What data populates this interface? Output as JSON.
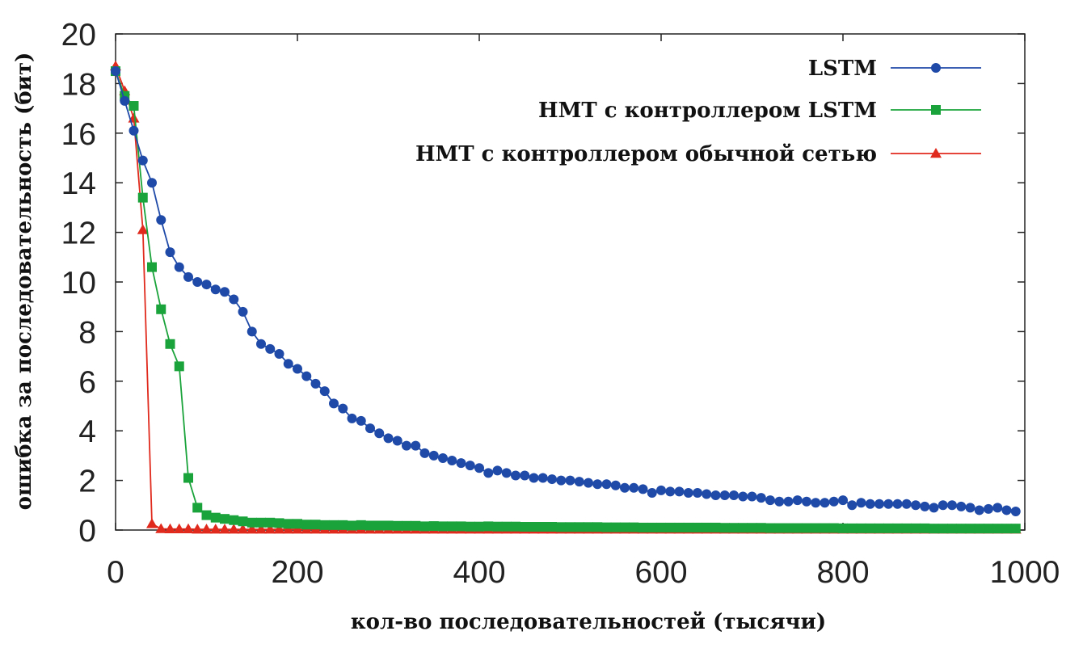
{
  "chart_data": {
    "type": "line",
    "title": "",
    "xlabel": "кол-во последовательностей (тысячи)",
    "ylabel": "ошибка за последовательность (бит)",
    "xlim": [
      0,
      1000
    ],
    "ylim": [
      0,
      20
    ],
    "xticks": [
      "0",
      "200",
      "400",
      "600",
      "800",
      "1000"
    ],
    "yticks": [
      "0",
      "2",
      "4",
      "6",
      "8",
      "10",
      "12",
      "14",
      "16",
      "18",
      "20"
    ],
    "grid": false,
    "legend_position": "top-right",
    "series": [
      {
        "name": "LSTM",
        "color": "#1f4aa8",
        "marker": "circle",
        "x": [
          0,
          10,
          20,
          30,
          40,
          50,
          60,
          70,
          80,
          90,
          100,
          110,
          120,
          130,
          140,
          150,
          160,
          170,
          180,
          190,
          200,
          210,
          220,
          230,
          240,
          250,
          260,
          270,
          280,
          290,
          300,
          310,
          320,
          330,
          340,
          350,
          360,
          370,
          380,
          390,
          400,
          410,
          420,
          430,
          440,
          450,
          460,
          470,
          480,
          490,
          500,
          510,
          520,
          530,
          540,
          550,
          560,
          570,
          580,
          590,
          600,
          610,
          620,
          630,
          640,
          650,
          660,
          670,
          680,
          690,
          700,
          710,
          720,
          730,
          740,
          750,
          760,
          770,
          780,
          790,
          800,
          810,
          820,
          830,
          840,
          850,
          860,
          870,
          880,
          890,
          900,
          910,
          920,
          930,
          940,
          950,
          960,
          970,
          980,
          990
        ],
        "y": [
          18.5,
          17.3,
          16.1,
          14.9,
          14.0,
          12.5,
          11.2,
          10.6,
          10.2,
          10.0,
          9.9,
          9.7,
          9.6,
          9.3,
          8.8,
          8.0,
          7.5,
          7.3,
          7.1,
          6.7,
          6.5,
          6.2,
          5.9,
          5.6,
          5.1,
          4.9,
          4.5,
          4.4,
          4.1,
          3.9,
          3.7,
          3.6,
          3.4,
          3.4,
          3.1,
          3.0,
          2.9,
          2.8,
          2.7,
          2.6,
          2.5,
          2.3,
          2.4,
          2.3,
          2.2,
          2.2,
          2.1,
          2.1,
          2.05,
          2.0,
          2.0,
          1.95,
          1.9,
          1.85,
          1.85,
          1.8,
          1.7,
          1.7,
          1.65,
          1.5,
          1.6,
          1.55,
          1.55,
          1.5,
          1.5,
          1.45,
          1.4,
          1.4,
          1.4,
          1.35,
          1.35,
          1.3,
          1.2,
          1.15,
          1.15,
          1.2,
          1.15,
          1.1,
          1.1,
          1.15,
          1.2,
          1.0,
          1.1,
          1.05,
          1.05,
          1.05,
          1.05,
          1.05,
          1.0,
          0.95,
          0.9,
          1.0,
          1.0,
          0.95,
          0.9,
          0.8,
          0.85,
          0.9,
          0.8,
          0.75
        ]
      },
      {
        "name": "НМТ с контроллером LSTM",
        "color": "#1aa33a",
        "marker": "square",
        "x": [
          0,
          10,
          20,
          30,
          40,
          50,
          60,
          70,
          80,
          90,
          100,
          110,
          120,
          130,
          140,
          150,
          160,
          170,
          180,
          190,
          200,
          210,
          220,
          230,
          240,
          250,
          260,
          270,
          280,
          290,
          300,
          310,
          320,
          330,
          340,
          350,
          360,
          370,
          380,
          390,
          400,
          410,
          420,
          430,
          440,
          450,
          460,
          470,
          480,
          490,
          500,
          510,
          520,
          530,
          540,
          550,
          560,
          570,
          580,
          590,
          600,
          610,
          620,
          630,
          640,
          650,
          660,
          670,
          680,
          690,
          700,
          710,
          720,
          730,
          740,
          750,
          760,
          770,
          780,
          790,
          800,
          810,
          820,
          830,
          840,
          850,
          860,
          870,
          880,
          890,
          900,
          910,
          920,
          930,
          940,
          950,
          960,
          970,
          980,
          990
        ],
        "y": [
          18.5,
          17.5,
          17.1,
          13.4,
          10.6,
          8.9,
          7.5,
          6.6,
          2.1,
          0.9,
          0.6,
          0.5,
          0.45,
          0.4,
          0.35,
          0.3,
          0.3,
          0.3,
          0.28,
          0.25,
          0.25,
          0.22,
          0.22,
          0.2,
          0.2,
          0.2,
          0.18,
          0.2,
          0.18,
          0.18,
          0.18,
          0.17,
          0.17,
          0.17,
          0.15,
          0.16,
          0.15,
          0.15,
          0.15,
          0.14,
          0.14,
          0.15,
          0.14,
          0.14,
          0.14,
          0.13,
          0.13,
          0.13,
          0.13,
          0.12,
          0.12,
          0.12,
          0.12,
          0.12,
          0.11,
          0.11,
          0.11,
          0.11,
          0.1,
          0.1,
          0.1,
          0.1,
          0.1,
          0.1,
          0.1,
          0.1,
          0.1,
          0.09,
          0.09,
          0.09,
          0.09,
          0.09,
          0.08,
          0.08,
          0.08,
          0.08,
          0.08,
          0.08,
          0.08,
          0.08,
          0.07,
          0.07,
          0.07,
          0.07,
          0.07,
          0.07,
          0.07,
          0.07,
          0.07,
          0.07,
          0.06,
          0.06,
          0.06,
          0.06,
          0.06,
          0.06,
          0.06,
          0.06,
          0.06,
          0.06
        ]
      },
      {
        "name": "НМТ с контроллером обычной сетью",
        "color": "#e02a1d",
        "marker": "triangle",
        "x": [
          0,
          10,
          20,
          30,
          40,
          50,
          60,
          70,
          80,
          90,
          100,
          110,
          120,
          130,
          140,
          150,
          160,
          170,
          180,
          190,
          200,
          210,
          220,
          230,
          240,
          250,
          260,
          270,
          280,
          290,
          300,
          310,
          320,
          330,
          340,
          350,
          360,
          370,
          380,
          390,
          400,
          410,
          420,
          430,
          440,
          450,
          460,
          470,
          480,
          490,
          500,
          510,
          520,
          530,
          540,
          550,
          560,
          570,
          580,
          590,
          600,
          610,
          620,
          630,
          640,
          650,
          660,
          670,
          680,
          690,
          700,
          710,
          720,
          730,
          740,
          750,
          760,
          770,
          780,
          790,
          800,
          810,
          820,
          830,
          840,
          850,
          860,
          870,
          880,
          890,
          900,
          910,
          920,
          930,
          940,
          950,
          960,
          970,
          980,
          990
        ],
        "y": [
          18.7,
          17.7,
          16.6,
          12.1,
          0.25,
          0.05,
          0.04,
          0.04,
          0.04,
          0.03,
          0.03,
          0.03,
          0.03,
          0.03,
          0.03,
          0.03,
          0.03,
          0.03,
          0.03,
          0.03,
          0.03,
          0.03,
          0.03,
          0.03,
          0.03,
          0.03,
          0.03,
          0.03,
          0.03,
          0.03,
          0.03,
          0.03,
          0.03,
          0.03,
          0.03,
          0.03,
          0.03,
          0.03,
          0.03,
          0.03,
          0.03,
          0.03,
          0.03,
          0.03,
          0.03,
          0.03,
          0.03,
          0.03,
          0.03,
          0.03,
          0.03,
          0.03,
          0.03,
          0.03,
          0.03,
          0.03,
          0.03,
          0.03,
          0.03,
          0.03,
          0.03,
          0.03,
          0.03,
          0.03,
          0.03,
          0.03,
          0.03,
          0.03,
          0.03,
          0.03,
          0.03,
          0.03,
          0.03,
          0.03,
          0.03,
          0.03,
          0.03,
          0.03,
          0.03,
          0.03,
          0.03,
          0.03,
          0.03,
          0.03,
          0.03,
          0.03,
          0.03,
          0.03,
          0.03,
          0.03,
          0.03,
          0.03,
          0.03,
          0.03,
          0.03,
          0.03,
          0.03,
          0.03,
          0.03,
          0.03
        ]
      }
    ]
  }
}
